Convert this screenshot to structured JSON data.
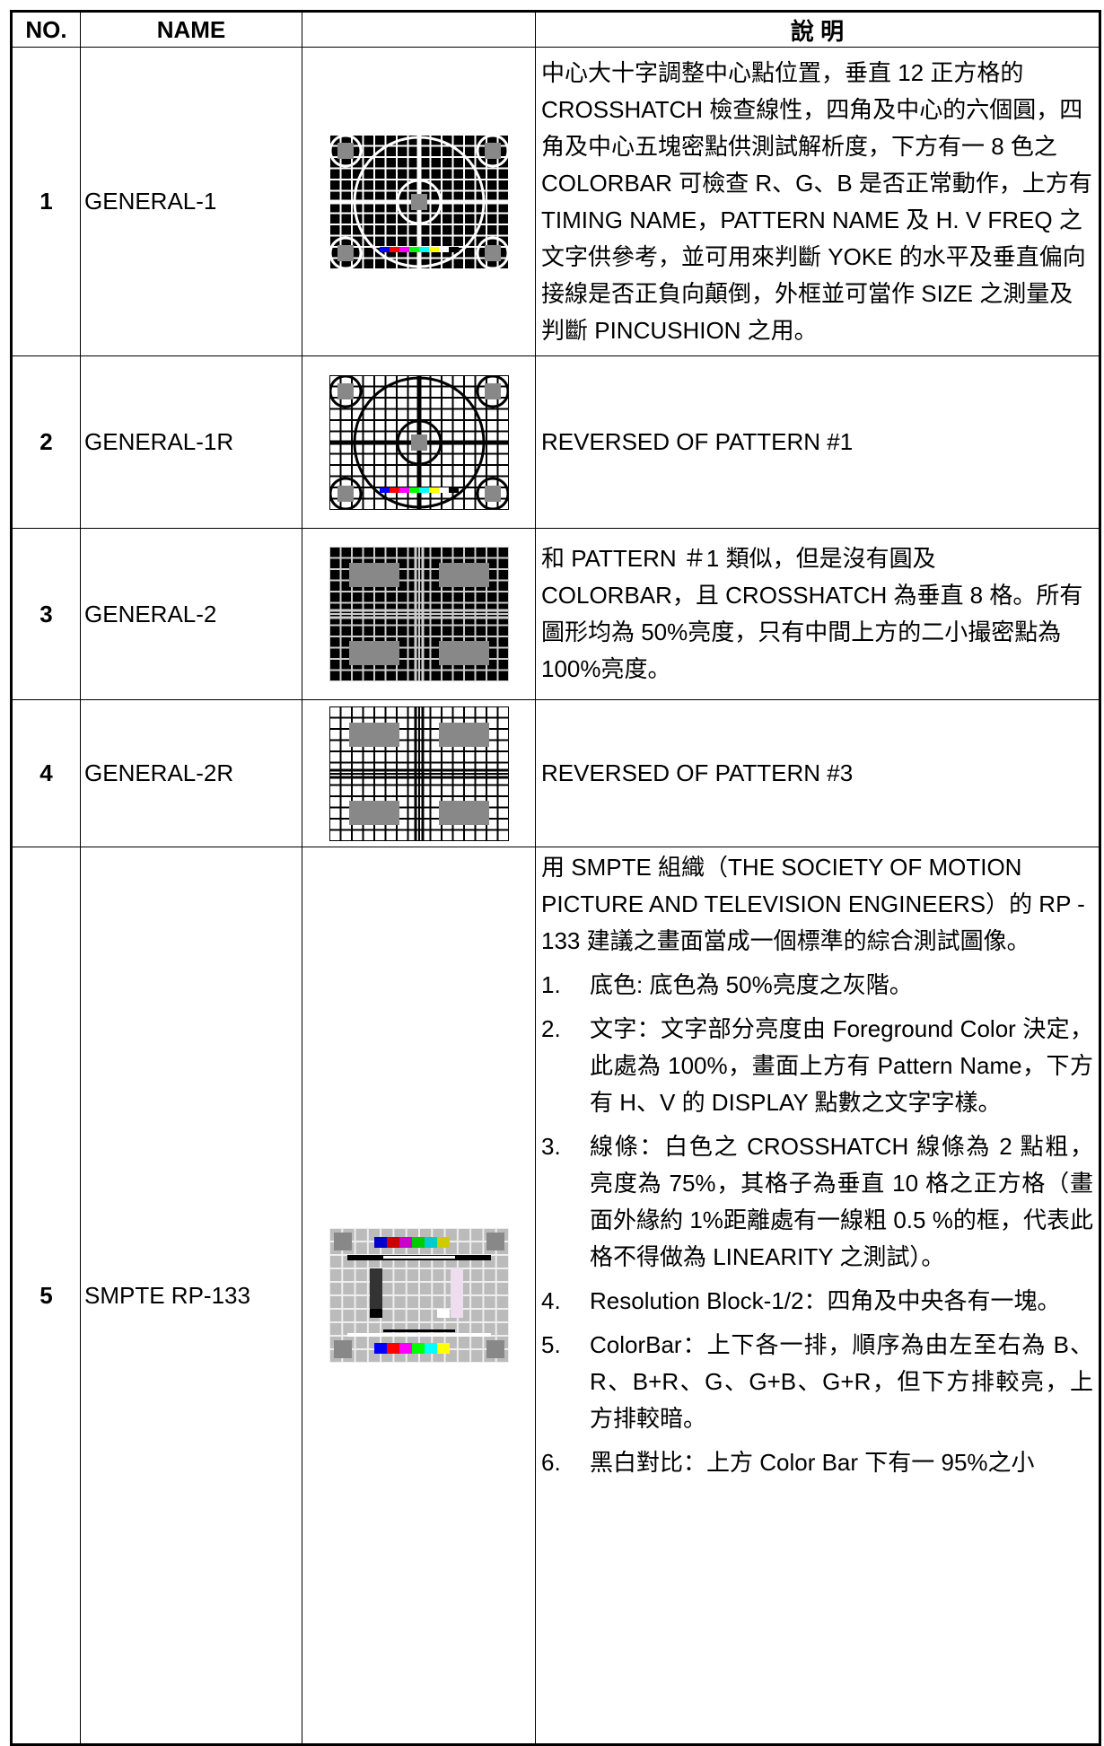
{
  "table": {
    "header": {
      "no": "NO.",
      "name": "NAME",
      "description": "說 明"
    },
    "rows": [
      {
        "no": "1",
        "name": "GENERAL-1",
        "description": [
          "中心大十字調整中心點位置，垂直 12 正方格的 CROSSHATCH 檢查線性，四角及中心的六個圓，四角及中心五塊密點供測試解析度，下方有一 8 色之 COLORBAR 可檢查 R、G、B 是否正常動作，上方有 TIMING NAME，PATTERN NAME 及 H. V FREQ 之文字供參考，並可用來判斷 YOKE 的水平及垂直偏向接線是否正負向顛倒，外框並可當作 SIZE 之測量及判斷 PINCUSHION 之用。"
        ]
      },
      {
        "no": "2",
        "name": "GENERAL-1R",
        "description": [
          "REVERSED OF PATTERN #1"
        ]
      },
      {
        "no": "3",
        "name": "GENERAL-2",
        "description": [
          "和 PATTERN ＃1 類似，但是沒有圓及 COLORBAR，且 CROSSHATCH 為垂直 8 格。所有圖形均為 50%亮度，只有中間上方的二小撮密點為 100%亮度。"
        ]
      },
      {
        "no": "4",
        "name": "GENERAL-2R",
        "description": [
          "REVERSED OF PATTERN #3"
        ]
      },
      {
        "no": "5",
        "name": "SMPTE RP-133",
        "description": [
          "用 SMPTE 組織（THE SOCIETY OF MOTION PICTURE AND TELEVISION ENGINEERS）的 RP - 133 建議之畫面當成一個標準的綜合測試圖像。"
        ],
        "items": [
          {
            "number": "1.",
            "text": "底色: 底色為 50%亮度之灰階。"
          },
          {
            "number": "2.",
            "text": "文字：文字部分亮度由 Foreground Color 決定，此處為 100%，畫面上方有 Pattern Name，下方有 H、V 的 DISPLAY 點數之文字字樣。"
          },
          {
            "number": "3.",
            "text": "線條：白色之 CROSSHATCH 線條為 2 點粗，亮度為 75%，其格子為垂直 10 格之正方格（畫面外緣約 1%距離處有一線粗 0.5 %的框，代表此格不得做為 LINEARITY 之測試）。"
          },
          {
            "number": "4.",
            "text": "Resolution Block-1/2：四角及中央各有一塊。"
          },
          {
            "number": "5.",
            "text": "ColorBar：上下各一排，順序為由左至右為 B、R、B+R、G、G+B、G+R，但下方排較亮，上方排較暗。"
          },
          {
            "number": "6.",
            "text": "黑白對比：上方 Color Bar 下有一 95%之小"
          }
        ]
      }
    ]
  }
}
